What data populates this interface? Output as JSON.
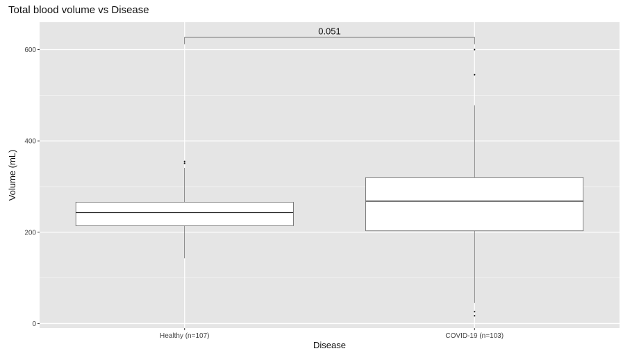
{
  "chart_data": {
    "type": "boxplot",
    "title": "Total blood volume vs Disease",
    "xlabel": "Disease",
    "ylabel": "Volume (mL)",
    "ylim": [
      -10,
      660
    ],
    "yticks": [
      0,
      200,
      400,
      600
    ],
    "grid": true,
    "categories": [
      "Healthy (n=107)",
      "COVID-19 (n=103)"
    ],
    "boxes": [
      {
        "category": "Healthy (n=107)",
        "whisker_low": 143,
        "q1": 214,
        "median": 243,
        "q3": 266,
        "whisker_high": 341,
        "outliers": [
          351,
          355
        ]
      },
      {
        "category": "COVID-19 (n=103)",
        "whisker_low": 45,
        "q1": 203,
        "median": 268,
        "q3": 320,
        "whisker_high": 478,
        "outliers": [
          17,
          26,
          545,
          600
        ]
      }
    ],
    "annotation": {
      "label": "0.051",
      "y": 627
    },
    "colors": {
      "panel": "#e5e5e5",
      "grid": "#ffffff",
      "box_fill": "#ffffff",
      "box_stroke": "#333333"
    }
  }
}
